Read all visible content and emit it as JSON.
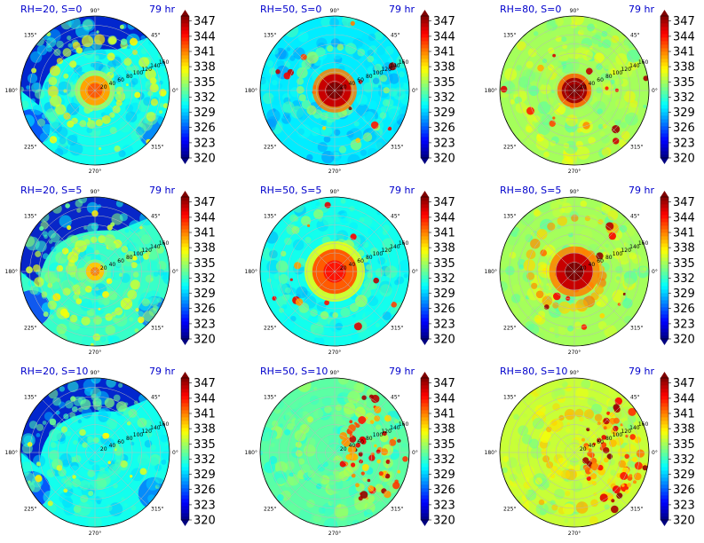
{
  "figure": {
    "time_label": "79 hr",
    "colorbar": {
      "ticks": [
        "320",
        "323",
        "326",
        "329",
        "332",
        "335",
        "338",
        "341",
        "344",
        "347"
      ],
      "min": 320,
      "max": 348
    },
    "angle_labels": [
      "90°",
      "45°",
      "0°",
      "315°",
      "270°",
      "225°",
      "180°",
      "135°"
    ],
    "radial_labels": [
      "20",
      "40",
      "60",
      "80",
      "100",
      "120",
      "140",
      "160"
    ]
  },
  "chart_data": [
    {
      "type": "heatmap",
      "title": "RH=20, S=0",
      "rh": 20,
      "shear": 0,
      "core_value": 340,
      "field_level": 331,
      "ring_value": 337,
      "ring_radius": 0.55,
      "dry_outer": true,
      "core_radius": 0.2
    },
    {
      "type": "heatmap",
      "title": "RH=50, S=0",
      "rh": 50,
      "shear": 0,
      "core_value": 346,
      "field_level": 330,
      "ring_value": 334,
      "ring_radius": 0.5,
      "dry_outer": false,
      "core_radius": 0.22
    },
    {
      "type": "heatmap",
      "title": "RH=80, S=0",
      "rh": 80,
      "shear": 0,
      "core_value": 347,
      "field_level": 335,
      "ring_value": 336,
      "ring_radius": 0.5,
      "dry_outer": false,
      "core_radius": 0.17
    },
    {
      "type": "heatmap",
      "title": "RH=20, S=5",
      "rh": 20,
      "shear": 5,
      "core_value": 339,
      "field_level": 332,
      "ring_value": 336,
      "ring_radius": 0.5,
      "dry_outer": true,
      "core_radius": 0.12
    },
    {
      "type": "heatmap",
      "title": "RH=50, S=5",
      "rh": 50,
      "shear": 5,
      "core_value": 342,
      "field_level": 331,
      "ring_value": 334,
      "ring_radius": 0.5,
      "dry_outer": false,
      "core_radius": 0.3
    },
    {
      "type": "heatmap",
      "title": "RH=80, S=5",
      "rh": 80,
      "shear": 5,
      "core_value": 346,
      "field_level": 335,
      "ring_value": 340,
      "ring_radius": 0.45,
      "dry_outer": false,
      "core_radius": 0.25
    },
    {
      "type": "heatmap",
      "title": "RH=20, S=10",
      "rh": 20,
      "shear": 10,
      "core_value": 333,
      "field_level": 331,
      "ring_value": 333,
      "ring_radius": 0.5,
      "dry_outer": true,
      "core_radius": 0.0
    },
    {
      "type": "heatmap",
      "title": "RH=50, S=10",
      "rh": 50,
      "shear": 10,
      "core_value": 333,
      "field_level": 333,
      "ring_value": 335,
      "ring_radius": 0.5,
      "dry_outer": false,
      "core_radius": 0.0
    },
    {
      "type": "heatmap",
      "title": "RH=80, S=10",
      "rh": 80,
      "shear": 10,
      "core_value": 337,
      "field_level": 336,
      "ring_value": 339,
      "ring_radius": 0.5,
      "dry_outer": false,
      "core_radius": 0.0
    }
  ]
}
